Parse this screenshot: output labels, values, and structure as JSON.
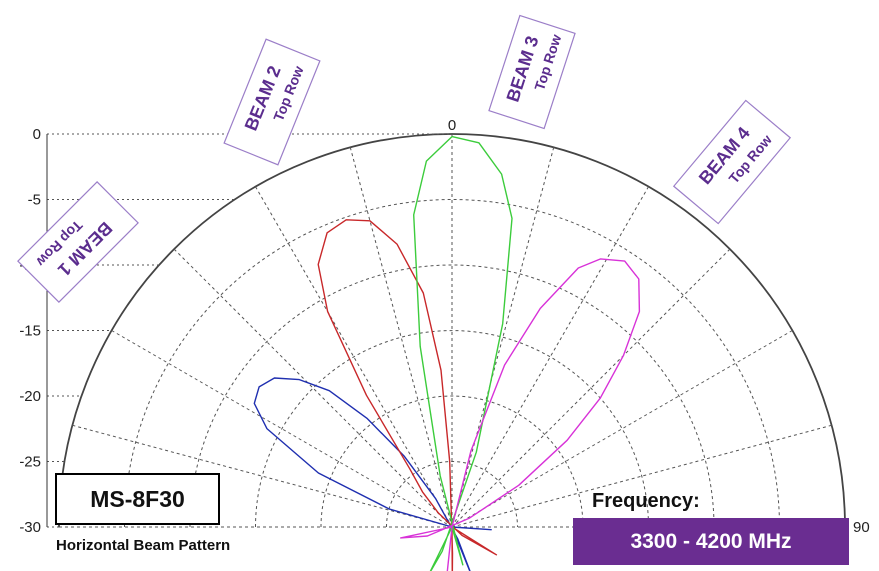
{
  "chart_data": {
    "type": "polar",
    "radial_axis": {
      "min": -30,
      "max": 0,
      "ticks": [
        0,
        -5,
        -10,
        -15,
        -20,
        -25,
        -30
      ]
    },
    "angle_labels": [
      "0",
      "90"
    ],
    "grid": true,
    "series": [
      {
        "name": "BEAM 1",
        "sublabel": "Top Row",
        "color": "#1f2fb0",
        "points": [
          [
            -86,
            -33
          ],
          [
            -80,
            -30
          ],
          [
            -74,
            -25
          ],
          [
            -68,
            -19
          ],
          [
            -62,
            -14
          ],
          [
            -58,
            -12.2
          ],
          [
            -54,
            -11.8
          ],
          [
            -50,
            -12.3
          ],
          [
            -46,
            -13.8
          ],
          [
            -42,
            -16
          ],
          [
            -38,
            -19.5
          ],
          [
            -34,
            -23.5
          ],
          [
            -30,
            -27.5
          ],
          [
            -26,
            -31
          ],
          [
            -22,
            -34.2
          ]
        ]
      },
      {
        "name": "BEAM 2",
        "sublabel": "Top Row",
        "color": "#c8282a",
        "points": [
          [
            -58,
            -34
          ],
          [
            -50,
            -31
          ],
          [
            -44,
            -28.5
          ],
          [
            -40,
            -26.5
          ],
          [
            -36,
            -24.5
          ],
          [
            -33,
            -18
          ],
          [
            -30,
            -11
          ],
          [
            -27,
            -7.5
          ],
          [
            -23,
            -5.6
          ],
          [
            -19,
            -5.2
          ],
          [
            -15,
            -5.8
          ],
          [
            -11,
            -8
          ],
          [
            -7,
            -12
          ],
          [
            -4,
            -18
          ],
          [
            -2,
            -25
          ],
          [
            -1,
            -32
          ],
          [
            -0.3,
            -34
          ]
        ]
      },
      {
        "name": "BEAM 3",
        "sublabel": "Top Row",
        "color": "#3ccc3c",
        "points": [
          [
            -16,
            -33
          ],
          [
            -13,
            -26
          ],
          [
            -10,
            -16
          ],
          [
            -7,
            -6
          ],
          [
            -4,
            -2
          ],
          [
            0,
            -0.2
          ],
          [
            4,
            -0.6
          ],
          [
            8,
            -2.8
          ],
          [
            11,
            -6
          ],
          [
            14,
            -14
          ],
          [
            18,
            -24
          ],
          [
            22,
            -32
          ],
          [
            26,
            -34
          ]
        ]
      },
      {
        "name": "BEAM 4",
        "sublabel": "Top Row",
        "color": "#d832d8",
        "points": [
          [
            6,
            -34
          ],
          [
            10,
            -30
          ],
          [
            14,
            -24
          ],
          [
            18,
            -17
          ],
          [
            22,
            -12
          ],
          [
            26,
            -8
          ],
          [
            29,
            -6.6
          ],
          [
            33,
            -5.8
          ],
          [
            37,
            -6.3
          ],
          [
            41,
            -8.2
          ],
          [
            45,
            -11.5
          ],
          [
            49,
            -15
          ],
          [
            53,
            -19
          ],
          [
            58,
            -24
          ],
          [
            63,
            -28.5
          ],
          [
            70,
            -32
          ],
          [
            78,
            -34
          ]
        ]
      }
    ]
  },
  "model": "MS-8F30",
  "subtitle": "Horizontal Beam Pattern",
  "frequency": {
    "label": "Frequency:",
    "value": "3300 - 4200 MHz"
  },
  "colors": {
    "frame": "#5b2d8e",
    "grid": "#555555"
  }
}
